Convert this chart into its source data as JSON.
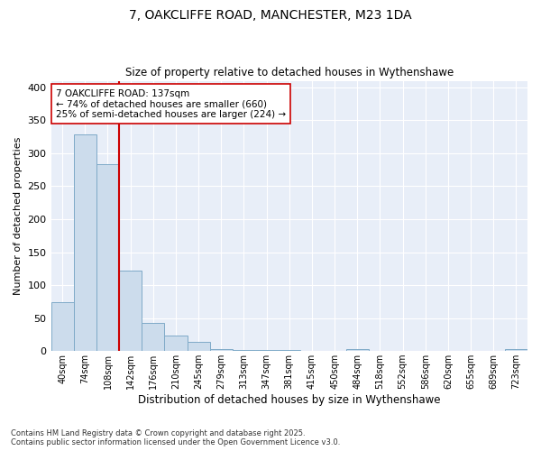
{
  "title_line1": "7, OAKCLIFFE ROAD, MANCHESTER, M23 1DA",
  "title_line2": "Size of property relative to detached houses in Wythenshawe",
  "xlabel": "Distribution of detached houses by size in Wythenshawe",
  "ylabel": "Number of detached properties",
  "categories": [
    "40sqm",
    "74sqm",
    "108sqm",
    "142sqm",
    "176sqm",
    "210sqm",
    "245sqm",
    "279sqm",
    "313sqm",
    "347sqm",
    "381sqm",
    "415sqm",
    "450sqm",
    "484sqm",
    "518sqm",
    "552sqm",
    "586sqm",
    "620sqm",
    "655sqm",
    "689sqm",
    "723sqm"
  ],
  "values": [
    74,
    328,
    283,
    122,
    42,
    24,
    14,
    3,
    2,
    2,
    2,
    0,
    0,
    3,
    0,
    0,
    0,
    0,
    0,
    0,
    3
  ],
  "bar_color": "#ccdcec",
  "bar_edge_color": "#7faac8",
  "vline_x": 2.5,
  "vline_color": "#cc0000",
  "annotation_text": "7 OAKCLIFFE ROAD: 137sqm\n← 74% of detached houses are smaller (660)\n25% of semi-detached houses are larger (224) →",
  "annotation_box_color": "#ffffff",
  "annotation_box_edge": "#cc0000",
  "footer_line1": "Contains HM Land Registry data © Crown copyright and database right 2025.",
  "footer_line2": "Contains public sector information licensed under the Open Government Licence v3.0.",
  "background_color": "#ffffff",
  "plot_bg_color": "#e8eef8",
  "grid_color": "#ffffff",
  "ylim": [
    0,
    410
  ],
  "yticks": [
    0,
    50,
    100,
    150,
    200,
    250,
    300,
    350,
    400
  ]
}
